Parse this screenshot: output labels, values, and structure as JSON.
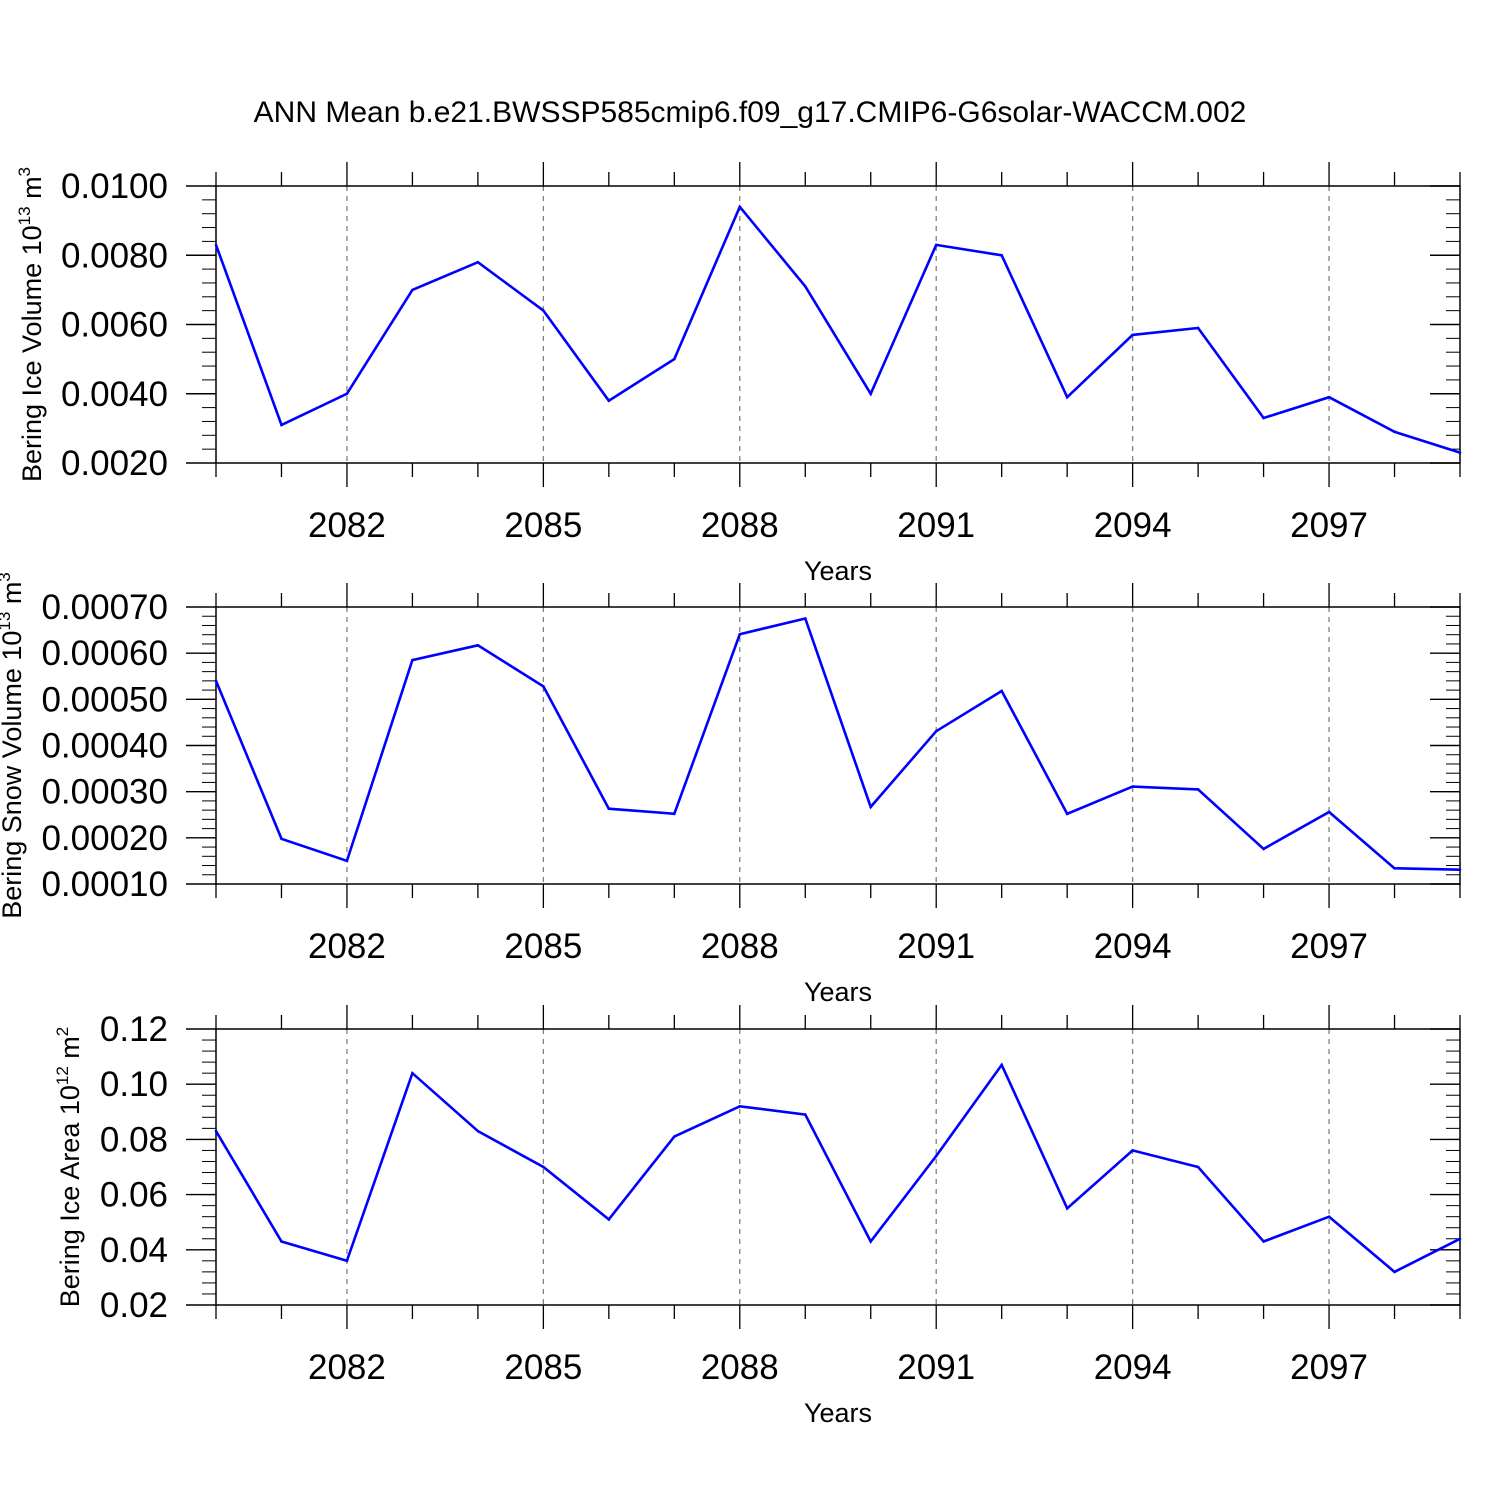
{
  "title": "ANN Mean b.e21.BWSSP585cmip6.f09_g17.CMIP6-G6solar-WACCM.002",
  "colors": {
    "line": "#0000ff",
    "axis": "#000000",
    "grid": "#808080"
  },
  "chart_data": [
    {
      "type": "line",
      "xlabel": "Years",
      "ylabel_parts": {
        "prefix": "Bering Ice Volume 10",
        "exponent": "13",
        "unit": "m",
        "unit_exponent": "3"
      },
      "xlim": [
        2080,
        2099
      ],
      "ylim": [
        0.002,
        0.01
      ],
      "x_ticks": [
        2082,
        2085,
        2088,
        2091,
        2094,
        2097
      ],
      "x_tick_labels": [
        "2082",
        "2085",
        "2088",
        "2091",
        "2094",
        "2097"
      ],
      "y_ticks": [
        0.002,
        0.004,
        0.006,
        0.008,
        0.01
      ],
      "y_tick_labels": [
        "0.0020",
        "0.0040",
        "0.0060",
        "0.0080",
        "0.0100"
      ],
      "y_minor_step": 0.0004,
      "grid": "x-dashed",
      "x": [
        2080,
        2081,
        2082,
        2083,
        2084,
        2085,
        2086,
        2087,
        2088,
        2089,
        2090,
        2091,
        2092,
        2093,
        2094,
        2095,
        2096,
        2097,
        2098,
        2099
      ],
      "values": [
        0.0083,
        0.0031,
        0.004,
        0.007,
        0.0078,
        0.0064,
        0.0038,
        0.005,
        0.0094,
        0.0071,
        0.004,
        0.0083,
        0.008,
        0.0039,
        0.0057,
        0.0059,
        0.0033,
        0.0039,
        0.0029,
        0.0023
      ]
    },
    {
      "type": "line",
      "xlabel": "Years",
      "ylabel_parts": {
        "prefix": "Bering Snow Volume 10",
        "exponent": "13",
        "unit": "m",
        "unit_exponent": "3"
      },
      "xlim": [
        2080,
        2099
      ],
      "ylim": [
        0.0001,
        0.0007
      ],
      "x_ticks": [
        2082,
        2085,
        2088,
        2091,
        2094,
        2097
      ],
      "x_tick_labels": [
        "2082",
        "2085",
        "2088",
        "2091",
        "2094",
        "2097"
      ],
      "y_ticks": [
        0.0001,
        0.0002,
        0.0003,
        0.0004,
        0.0005,
        0.0006,
        0.0007
      ],
      "y_tick_labels": [
        "0.00010",
        "0.00020",
        "0.00030",
        "0.00040",
        "0.00050",
        "0.00060",
        "0.00070"
      ],
      "y_minor_step": 2e-05,
      "grid": "x-dashed",
      "x": [
        2080,
        2081,
        2082,
        2083,
        2084,
        2085,
        2086,
        2087,
        2088,
        2089,
        2090,
        2091,
        2092,
        2093,
        2094,
        2095,
        2096,
        2097,
        2098,
        2099
      ],
      "values": [
        0.00054,
        0.000198,
        0.00015,
        0.000585,
        0.000617,
        0.000528,
        0.000263,
        0.000252,
        0.000641,
        0.000675,
        0.000267,
        0.000431,
        0.000518,
        0.000252,
        0.000311,
        0.000305,
        0.000176,
        0.000256,
        0.000134,
        0.000131
      ]
    },
    {
      "type": "line",
      "xlabel": "Years",
      "ylabel_parts": {
        "prefix": "Bering Ice Area 10",
        "exponent": "12",
        "unit": "m",
        "unit_exponent": "2"
      },
      "xlim": [
        2080,
        2099
      ],
      "ylim": [
        0.02,
        0.12
      ],
      "x_ticks": [
        2082,
        2085,
        2088,
        2091,
        2094,
        2097
      ],
      "x_tick_labels": [
        "2082",
        "2085",
        "2088",
        "2091",
        "2094",
        "2097"
      ],
      "y_ticks": [
        0.02,
        0.04,
        0.06,
        0.08,
        0.1,
        0.12
      ],
      "y_tick_labels": [
        "0.02",
        "0.04",
        "0.06",
        "0.08",
        "0.10",
        "0.12"
      ],
      "y_minor_step": 0.004,
      "grid": "x-dashed",
      "x": [
        2080,
        2081,
        2082,
        2083,
        2084,
        2085,
        2086,
        2087,
        2088,
        2089,
        2090,
        2091,
        2092,
        2093,
        2094,
        2095,
        2096,
        2097,
        2098,
        2099
      ],
      "values": [
        0.083,
        0.043,
        0.036,
        0.104,
        0.083,
        0.07,
        0.051,
        0.081,
        0.092,
        0.089,
        0.043,
        0.074,
        0.107,
        0.055,
        0.076,
        0.07,
        0.043,
        0.052,
        0.032,
        0.044
      ]
    }
  ]
}
